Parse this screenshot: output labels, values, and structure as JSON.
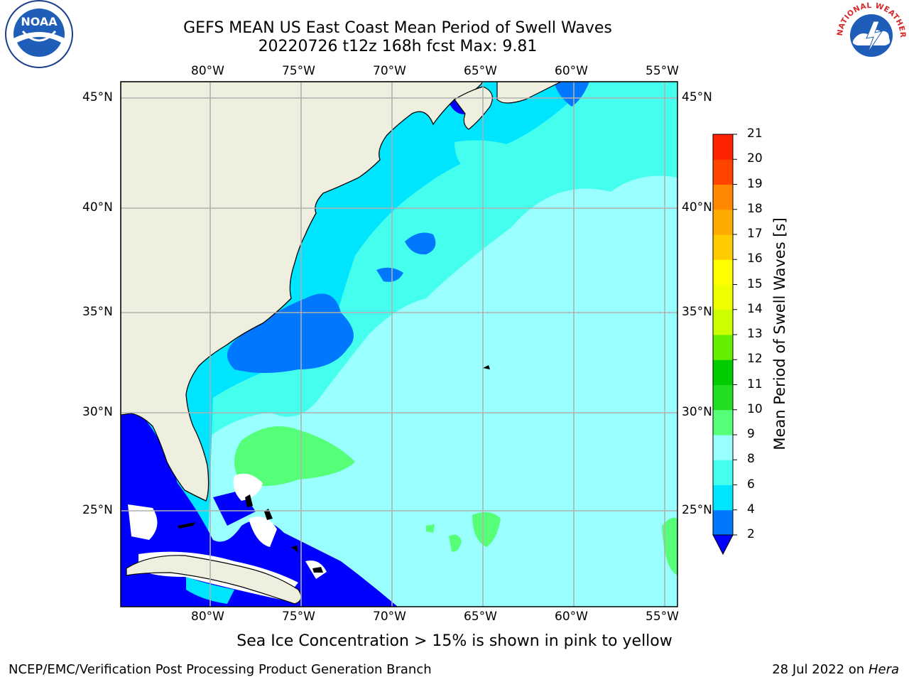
{
  "title": {
    "line1": "GEFS MEAN US East Coast Mean Period of Swell Waves",
    "line2": "20220726 t12z 168h fcst   Max: 9.81"
  },
  "logos": {
    "left": {
      "text": "NOAA",
      "icon": "noaa-logo-icon"
    },
    "right": {
      "text": "NATIONAL WEATHER SERVICE",
      "icon": "nws-logo-icon"
    }
  },
  "map": {
    "lon_labels": [
      "80°W",
      "75°W",
      "70°W",
      "65°W",
      "60°W",
      "55°W"
    ],
    "lat_labels": [
      "45°N",
      "40°N",
      "35°N",
      "30°N",
      "25°N"
    ]
  },
  "colorbar": {
    "title": "Mean Period of Swell Waves [s]",
    "ticks": [
      "2",
      "4",
      "6",
      "8",
      "9",
      "10",
      "11",
      "12",
      "13",
      "14",
      "15",
      "16",
      "17",
      "18",
      "19",
      "20",
      "21"
    ],
    "colors": [
      "#0000ff",
      "#0077ff",
      "#00e5ff",
      "#44ffee",
      "#99ffff",
      "#55ff77",
      "#22dd22",
      "#00cc00",
      "#66ee00",
      "#ccff00",
      "#eeff00",
      "#ffff00",
      "#ffcc00",
      "#ffaa00",
      "#ff8800",
      "#ff4400",
      "#ff2200",
      "#ff0000"
    ]
  },
  "note": "Sea Ice Concentration > 15% is shown in pink to yellow",
  "footer": {
    "left": "NCEP/EMC/Verification Post Processing Product Generation Branch",
    "date": "28 Jul 2022 on ",
    "machine": "Hera"
  }
}
